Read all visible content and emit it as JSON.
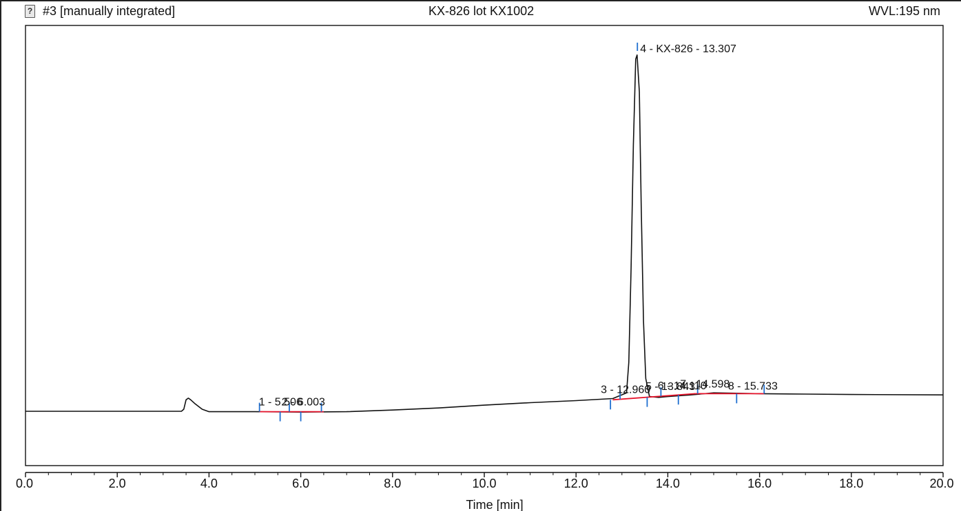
{
  "header": {
    "left_title": "#3 [manually integrated]",
    "center_title": "KX-826 lot KX1002",
    "right_title": "WVL:195 nm",
    "icon": "question-document-icon"
  },
  "chart_data": {
    "type": "line",
    "title": "KX-826 lot KX1002",
    "xlabel": "Time [min]",
    "ylabel": "",
    "xlim": [
      0,
      20
    ],
    "x_ticks": [
      "0.0",
      "2.0",
      "4.0",
      "6.0",
      "8.0",
      "10.0",
      "12.0",
      "14.0",
      "16.0",
      "18.0",
      "20.0"
    ],
    "grid": false,
    "colors": {
      "trace": "#111111",
      "baseline": "#e8142c",
      "marker": "#1f6fd0"
    },
    "series": [
      {
        "values": [
          [
            0.0,
            0.0
          ],
          [
            3.0,
            0.0
          ],
          [
            3.4,
            0.0
          ],
          [
            3.45,
            0.05
          ],
          [
            3.5,
            0.28
          ],
          [
            3.55,
            0.32
          ],
          [
            3.6,
            0.28
          ],
          [
            3.7,
            0.18
          ],
          [
            3.85,
            0.05
          ],
          [
            4.0,
            -0.01
          ],
          [
            5.0,
            -0.01
          ],
          [
            6.0,
            -0.02
          ],
          [
            7.0,
            -0.01
          ],
          [
            8.0,
            0.03
          ],
          [
            9.0,
            0.08
          ],
          [
            10.0,
            0.15
          ],
          [
            11.0,
            0.21
          ],
          [
            12.0,
            0.26
          ],
          [
            12.8,
            0.31
          ],
          [
            13.1,
            0.45
          ],
          [
            13.15,
            1.2
          ],
          [
            13.2,
            3.5
          ],
          [
            13.25,
            6.5
          ],
          [
            13.3,
            8.6
          ],
          [
            13.33,
            8.7
          ],
          [
            13.38,
            7.8
          ],
          [
            13.42,
            5.0
          ],
          [
            13.47,
            2.2
          ],
          [
            13.52,
            0.8
          ],
          [
            13.6,
            0.36
          ],
          [
            13.8,
            0.34
          ],
          [
            14.0,
            0.36
          ],
          [
            14.5,
            0.4
          ],
          [
            15.0,
            0.45
          ],
          [
            15.5,
            0.44
          ],
          [
            16.0,
            0.43
          ],
          [
            17.0,
            0.42
          ],
          [
            18.0,
            0.41
          ],
          [
            20.0,
            0.4
          ]
        ]
      }
    ],
    "baselines": [
      [
        5.1,
        -0.01,
        6.5,
        -0.01
      ],
      [
        12.8,
        0.28,
        14.6,
        0.43
      ],
      [
        14.6,
        0.43,
        16.1,
        0.43
      ]
    ],
    "peak_markers": [
      5.1,
      5.55,
      5.75,
      6.0,
      6.45,
      12.75,
      12.96,
      13.55,
      13.85,
      14.23,
      14.65,
      15.5,
      16.1
    ],
    "annotations": [
      {
        "text": "4 - KX-826 - 13.307",
        "x": 13.307
      },
      {
        "text": "1 - 5.506",
        "x": 5.506
      },
      {
        "text": "2 - 6.003",
        "x": 6.003
      },
      {
        "text": "3 - 12.960",
        "x": 12.96
      },
      {
        "text": "5 - 13.843",
        "x": 13.843
      },
      {
        "text": "6 - 14.110",
        "x": 14.11
      },
      {
        "text": "7 - 14.598",
        "x": 14.598
      },
      {
        "text": "8 - 15.733",
        "x": 15.733
      }
    ]
  }
}
